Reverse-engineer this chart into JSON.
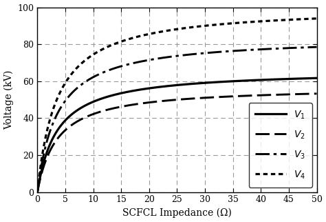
{
  "title": "",
  "xlabel": "SCFCL Impedance (Ω)",
  "ylabel": "Voltage (kV)",
  "xlim": [
    0,
    50
  ],
  "ylim": [
    0,
    100
  ],
  "xticks": [
    0,
    5,
    10,
    15,
    20,
    25,
    30,
    35,
    40,
    45,
    50
  ],
  "yticks": [
    0,
    20,
    40,
    60,
    80,
    100
  ],
  "grid_color": "#999999",
  "curves": [
    {
      "label": "$V_1$",
      "asymptote": 66.0,
      "scale": 3.5,
      "linestyle": "solid",
      "linewidth": 2.3,
      "color": "#000000"
    },
    {
      "label": "$V_2$",
      "asymptote": 57.0,
      "scale": 3.5,
      "linestyle": "dashed",
      "linewidth": 2.1,
      "color": "#000000"
    },
    {
      "label": "$V_3$",
      "asymptote": 84.0,
      "scale": 3.5,
      "linestyle": "dashdot",
      "linewidth": 2.1,
      "color": "#000000"
    },
    {
      "label": "$V_4$",
      "asymptote": 100.5,
      "scale": 3.5,
      "linestyle": "dotted",
      "linewidth": 2.3,
      "color": "#000000"
    }
  ],
  "background_color": "#ffffff",
  "figsize": [
    4.74,
    3.22
  ],
  "dpi": 100
}
